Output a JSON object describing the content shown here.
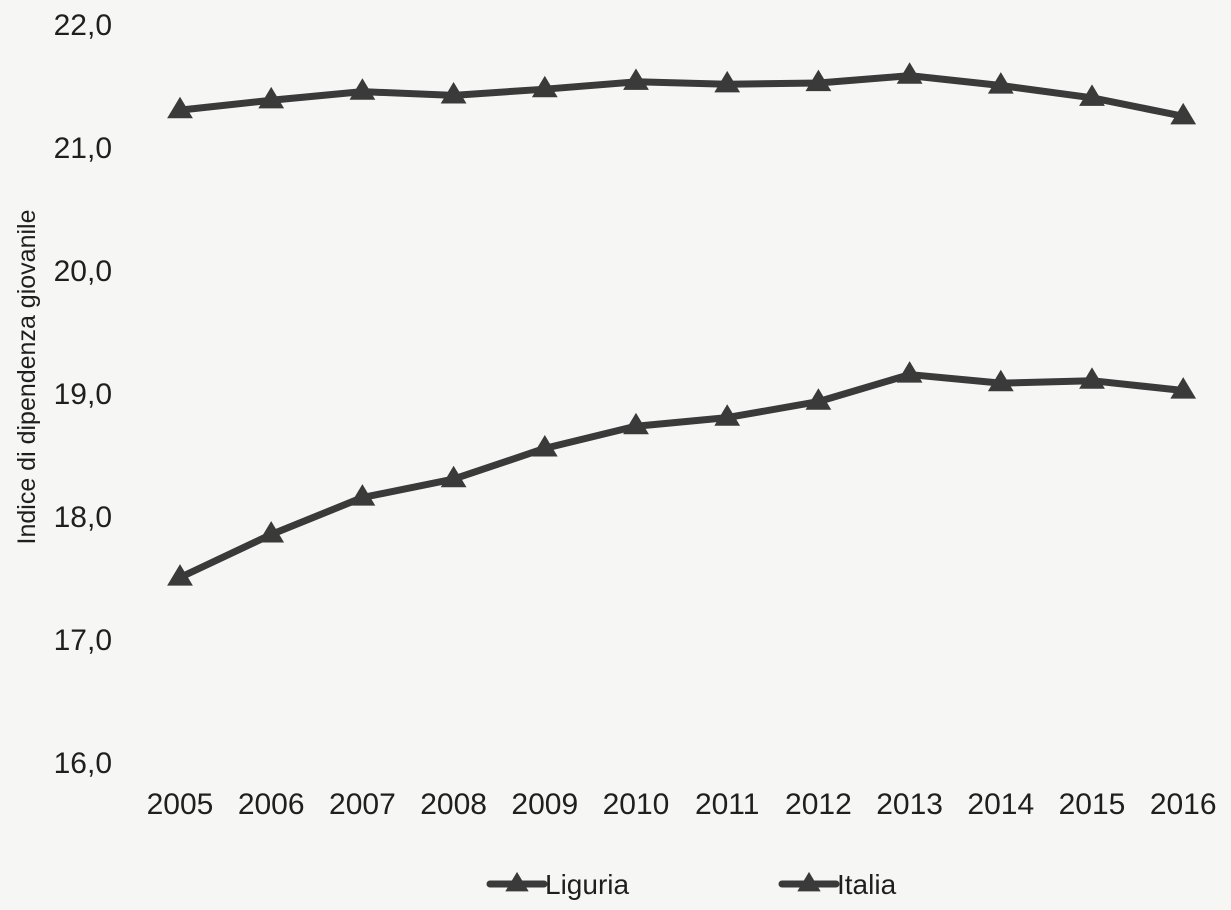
{
  "chart_data": {
    "type": "line",
    "title": "",
    "xlabel": "",
    "ylabel": "Indice di dipendenza giovanile",
    "categories": [
      "2005",
      "2006",
      "2007",
      "2008",
      "2009",
      "2010",
      "2011",
      "2012",
      "2013",
      "2014",
      "2015",
      "2016"
    ],
    "y_ticks": [
      "16,0",
      "17,0",
      "18,0",
      "19,0",
      "20,0",
      "21,0",
      "22,0"
    ],
    "ylim": [
      16.0,
      22.0
    ],
    "grid": false,
    "legend_position": "bottom",
    "series": [
      {
        "name": "Liguria",
        "color": "#3a3a3a",
        "marker": "triangle",
        "values": [
          17.5,
          17.85,
          18.15,
          18.3,
          18.55,
          18.73,
          18.8,
          18.93,
          19.15,
          19.08,
          19.1,
          19.02
        ]
      },
      {
        "name": "Italia",
        "color": "#3a3a3a",
        "marker": "triangle",
        "values": [
          21.3,
          21.38,
          21.45,
          21.42,
          21.47,
          21.53,
          21.51,
          21.52,
          21.58,
          21.5,
          21.4,
          21.25
        ]
      }
    ]
  }
}
